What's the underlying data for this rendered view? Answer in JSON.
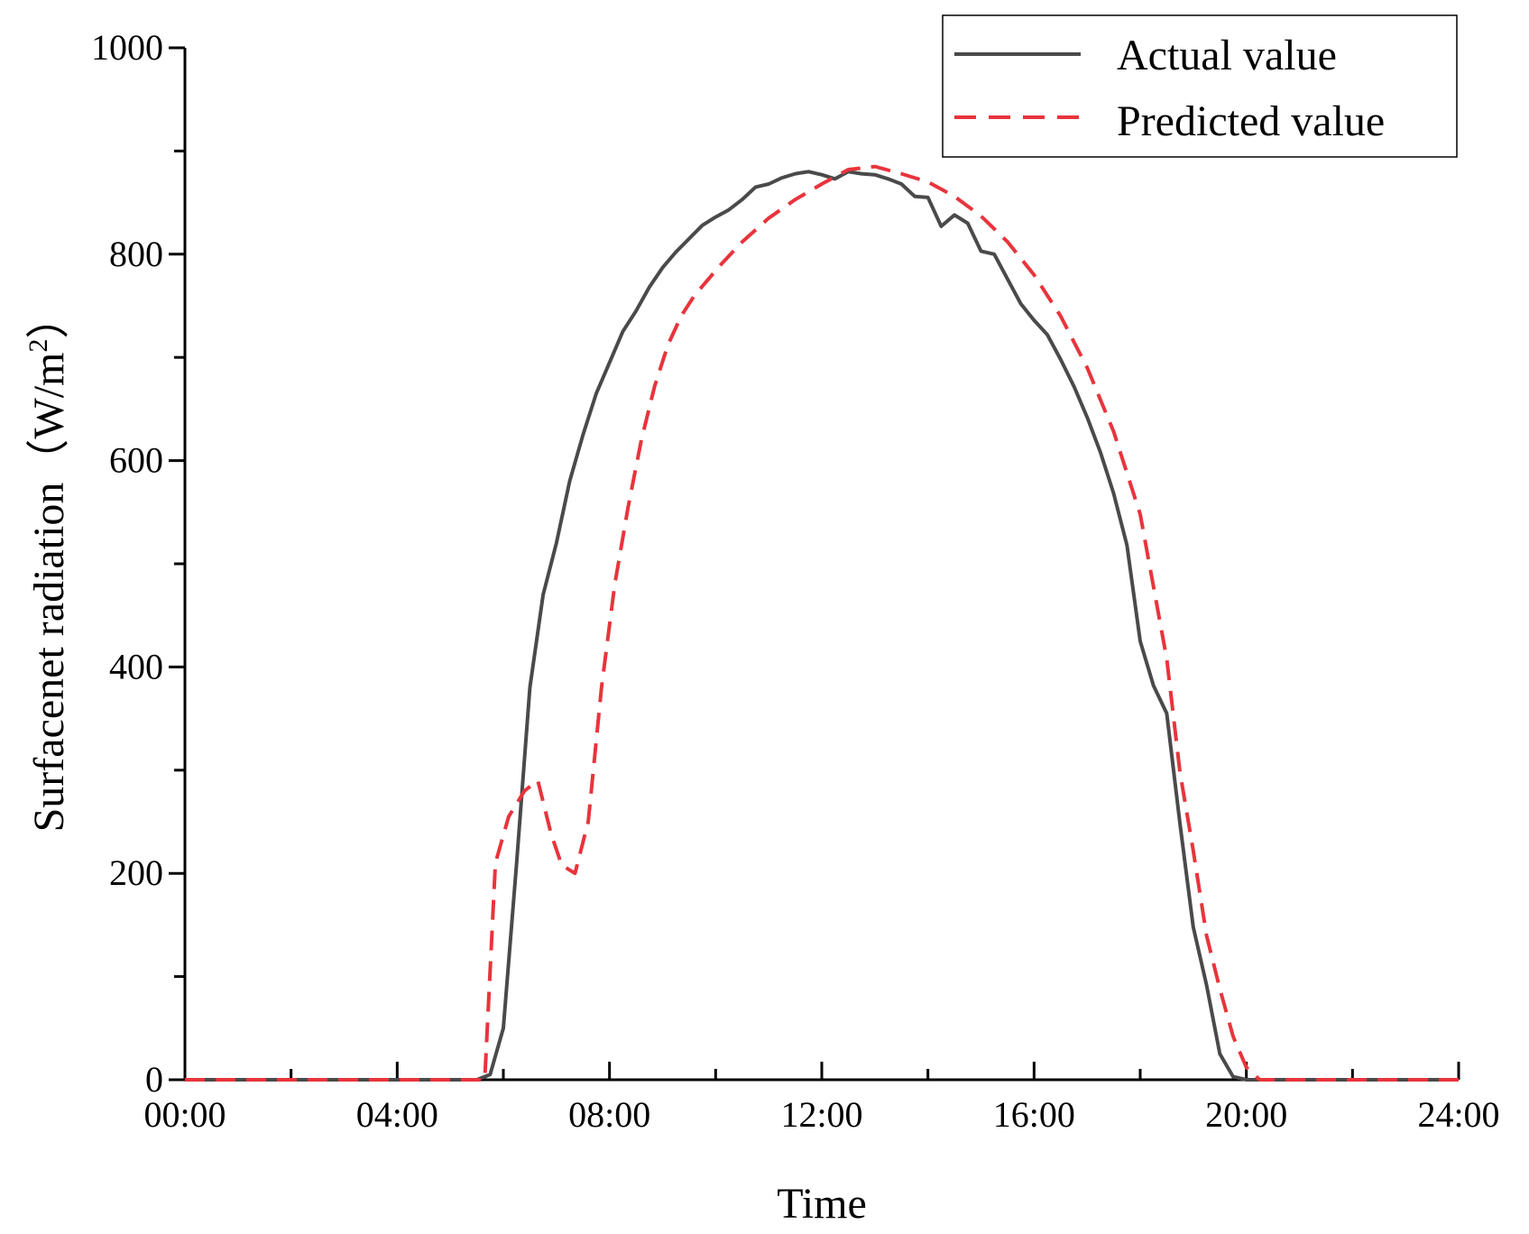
{
  "chart_data": {
    "type": "line",
    "title": "",
    "xlabel": "Time",
    "ylabel": "Surfacenet radiation",
    "ylabel_unit_open": "（W/m",
    "ylabel_unit_sup": "2",
    "ylabel_unit_close": "）",
    "xlim": [
      0,
      24
    ],
    "ylim": [
      0,
      1000
    ],
    "x_ticks": [
      0,
      4,
      8,
      12,
      16,
      20,
      24
    ],
    "x_tick_labels": [
      "00:00",
      "04:00",
      "08:00",
      "12:00",
      "16:00",
      "20:00",
      "24:00"
    ],
    "y_ticks": [
      0,
      200,
      400,
      600,
      800,
      1000
    ],
    "y_tick_labels": [
      "0",
      "200",
      "400",
      "600",
      "800",
      "1000"
    ],
    "legend_position": "top-right",
    "series": [
      {
        "name": "Actual value",
        "color": "#4a4a4a",
        "style": "solid",
        "x": [
          0,
          5.5,
          5.75,
          6.0,
          6.25,
          6.5,
          6.75,
          7.0,
          7.25,
          7.5,
          7.75,
          8.0,
          8.25,
          8.5,
          8.75,
          9.0,
          9.25,
          9.5,
          9.75,
          10.0,
          10.25,
          10.5,
          10.75,
          11.0,
          11.25,
          11.5,
          11.75,
          12.0,
          12.25,
          12.5,
          12.75,
          13.0,
          13.25,
          13.5,
          13.75,
          14.0,
          14.25,
          14.5,
          14.75,
          15.0,
          15.25,
          15.5,
          15.75,
          16.0,
          16.25,
          16.5,
          16.75,
          17.0,
          17.25,
          17.5,
          17.75,
          18.0,
          18.25,
          18.5,
          18.75,
          19.0,
          19.25,
          19.5,
          19.75,
          20.0,
          20.25,
          24
        ],
        "y": [
          0,
          0,
          5,
          50,
          210,
          380,
          470,
          520,
          580,
          625,
          665,
          695,
          725,
          745,
          768,
          787,
          802,
          815,
          828,
          836,
          843,
          853,
          865,
          868,
          874,
          878,
          880,
          877,
          873,
          880,
          878,
          877,
          873,
          868,
          856,
          855,
          827,
          838,
          830,
          803,
          800,
          776,
          752,
          736,
          722,
          698,
          672,
          642,
          608,
          568,
          518,
          425,
          382,
          355,
          248,
          148,
          92,
          25,
          3,
          0,
          0,
          0
        ]
      },
      {
        "name": "Predicted value",
        "color": "#e8343c",
        "style": "dashed",
        "x": [
          0,
          5.65,
          5.85,
          6.1,
          6.4,
          6.65,
          6.9,
          7.1,
          7.35,
          7.6,
          7.85,
          8.1,
          8.35,
          8.6,
          8.85,
          9.1,
          9.35,
          9.6,
          9.85,
          10.1,
          10.5,
          11.0,
          11.5,
          12.0,
          12.5,
          13.0,
          13.5,
          14.0,
          14.5,
          15.0,
          15.5,
          16.0,
          16.5,
          17.0,
          17.5,
          18.0,
          18.25,
          18.5,
          18.75,
          19.0,
          19.25,
          19.5,
          19.75,
          20.0,
          20.25,
          24
        ],
        "y": [
          0,
          0,
          210,
          255,
          280,
          290,
          238,
          208,
          200,
          250,
          380,
          480,
          555,
          620,
          672,
          712,
          740,
          760,
          775,
          790,
          812,
          835,
          853,
          868,
          882,
          885,
          878,
          870,
          856,
          837,
          812,
          780,
          740,
          690,
          628,
          548,
          478,
          408,
          298,
          222,
          140,
          88,
          42,
          12,
          0,
          0
        ]
      }
    ]
  }
}
